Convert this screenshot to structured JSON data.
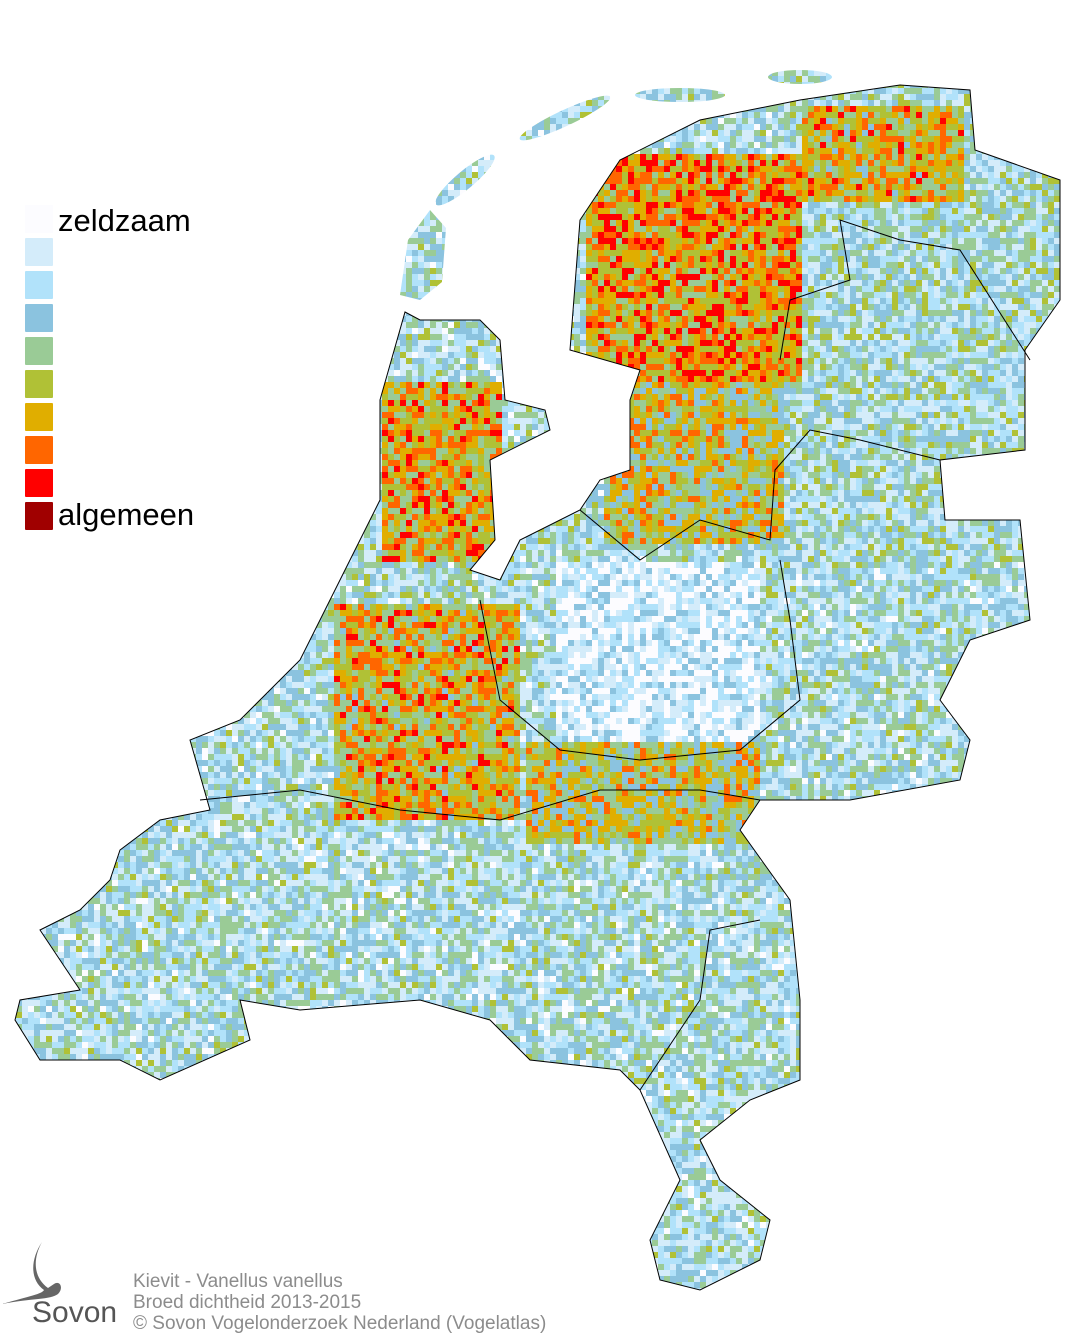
{
  "legend": {
    "top_label": "zeldzaam",
    "bottom_label": "algemeen",
    "colors": [
      "#fcfcff",
      "#d4ecfa",
      "#b1e2fa",
      "#8bc3df",
      "#9acb96",
      "#b0c136",
      "#e0ae00",
      "#ff6600",
      "#ff0000",
      "#a00000"
    ]
  },
  "footer": {
    "line1": "Kievit - Vanellus vanellus",
    "line2": "Broed dichtheid 2013-2015",
    "line3": "© Sovon Vogelonderzoek Nederland (Vogelatlas)"
  },
  "logo": {
    "text": "Sovon"
  },
  "map": {
    "region": "Nederland",
    "species": "Kievit"
  }
}
